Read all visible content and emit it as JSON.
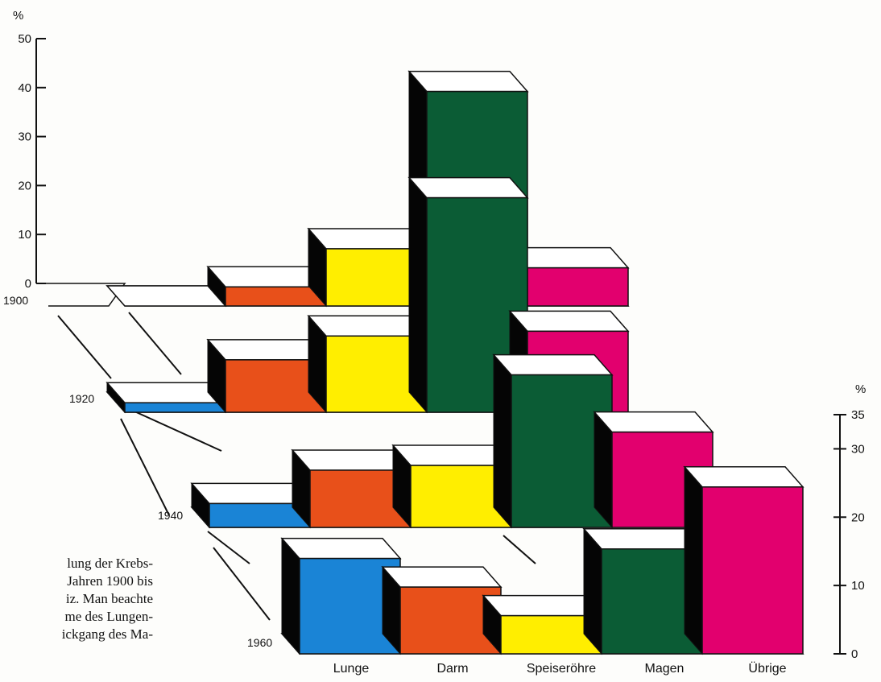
{
  "chart_data": {
    "type": "bar",
    "subtype": "3d-grouped-bar",
    "title": "",
    "xlabel": "",
    "ylabel": "%",
    "categories": [
      "Lunge",
      "Darm",
      "Speiseröhre",
      "Magen",
      "Übrige"
    ],
    "series": [
      {
        "name": "1900",
        "values": [
          0,
          4,
          12,
          45,
          8
        ]
      },
      {
        "name": "1920",
        "values": [
          2,
          11,
          16,
          45,
          17
        ]
      },
      {
        "name": "1940",
        "values": [
          5,
          12,
          13,
          32,
          20
        ]
      },
      {
        "name": "1960",
        "values": [
          20,
          14,
          8,
          22,
          35
        ]
      }
    ],
    "axes": {
      "back": {
        "unit": "%",
        "ticks": [
          "0",
          "10",
          "20",
          "30",
          "40",
          "50"
        ],
        "ylim": [
          0,
          50
        ]
      },
      "front": {
        "unit": "%",
        "ticks": [
          "0",
          "10",
          "20",
          "30",
          "35"
        ],
        "ylim": [
          0,
          35
        ]
      }
    },
    "row_labels": [
      "1900",
      "1920",
      "1940",
      "1960"
    ],
    "colors": {
      "Lunge": "#1a84d6",
      "Darm": "#e8501a",
      "Speiseröhre": "#ffee00",
      "Magen": "#0b5c35",
      "Übrige": "#e2006e",
      "side": "#050505",
      "top": "#ffffff",
      "outline": "#111111"
    },
    "grid": false,
    "legend": "none"
  },
  "caption": {
    "lines": [
      "lung der Krebs-",
      "Jahren 1900 bis",
      "iz. Man beachte",
      "me des Lungen-",
      "ickgang des Ma-"
    ]
  }
}
